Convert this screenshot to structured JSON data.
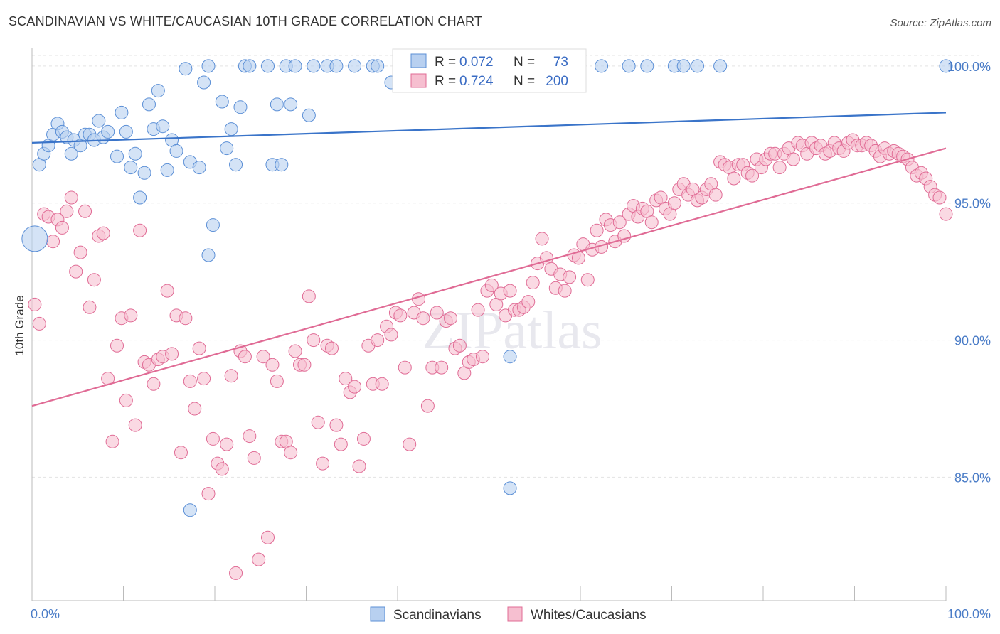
{
  "title": "SCANDINAVIAN VS WHITE/CAUCASIAN 10TH GRADE CORRELATION CHART",
  "source": "Source: ZipAtlas.com",
  "watermark": "ZIPatlas",
  "colors": {
    "blue": "#5b8fd6",
    "blue_fill": "#b8d0f0",
    "pink": "#e06b95",
    "pink_fill": "#f6bfd0",
    "tick": "#4a7cc7"
  },
  "chart_data": {
    "type": "scatter",
    "title": "SCANDINAVIAN VS WHITE/CAUCASIAN 10TH GRADE CORRELATION CHART",
    "xlabel": "",
    "ylabel": "10th Grade",
    "xlim": [
      0,
      100
    ],
    "ylim": [
      80.5,
      100.8
    ],
    "x_tick_labels": [
      "0.0%",
      "100.0%"
    ],
    "y_ticks": [
      85,
      90,
      95,
      100
    ],
    "y_tick_labels": [
      "85.0%",
      "90.0%",
      "95.0%",
      "100.0%"
    ],
    "grid": true,
    "legend": [
      {
        "r_label": "R =",
        "r": "0.072",
        "n_label": "N =",
        "n": "73"
      },
      {
        "r_label": "R =",
        "r": "0.724",
        "n_label": "N =",
        "n": "200"
      }
    ],
    "series": [
      {
        "name": "Scandinavians",
        "trend": {
          "x": [
            0,
            100
          ],
          "y": [
            97.2,
            98.3
          ]
        },
        "points": [
          [
            0.3,
            93.7
          ],
          [
            0.8,
            96.4
          ],
          [
            1.3,
            96.8
          ],
          [
            1.8,
            97.1
          ],
          [
            2.3,
            97.5
          ],
          [
            2.8,
            97.9
          ],
          [
            3.3,
            97.6
          ],
          [
            3.8,
            97.4
          ],
          [
            4.3,
            96.8
          ],
          [
            4.6,
            97.3
          ],
          [
            5.3,
            97.1
          ],
          [
            5.8,
            97.5
          ],
          [
            6.3,
            97.5
          ],
          [
            6.8,
            97.3
          ],
          [
            7.3,
            98.0
          ],
          [
            7.8,
            97.4
          ],
          [
            8.3,
            97.6
          ],
          [
            9.3,
            96.7
          ],
          [
            9.8,
            98.3
          ],
          [
            10.3,
            97.6
          ],
          [
            10.8,
            96.3
          ],
          [
            11.3,
            96.8
          ],
          [
            11.8,
            95.2
          ],
          [
            12.3,
            96.1
          ],
          [
            12.8,
            98.6
          ],
          [
            13.3,
            97.7
          ],
          [
            13.8,
            99.1
          ],
          [
            14.3,
            97.8
          ],
          [
            14.8,
            96.2
          ],
          [
            15.3,
            97.3
          ],
          [
            15.8,
            96.9
          ],
          [
            16.8,
            99.9
          ],
          [
            17.3,
            96.5
          ],
          [
            18.3,
            96.3
          ],
          [
            18.8,
            99.4
          ],
          [
            19.3,
            100.0
          ],
          [
            19.8,
            94.2
          ],
          [
            19.3,
            93.1
          ],
          [
            20.8,
            98.7
          ],
          [
            21.3,
            97.0
          ],
          [
            21.8,
            97.7
          ],
          [
            22.3,
            96.4
          ],
          [
            22.8,
            98.5
          ],
          [
            23.3,
            100.0
          ],
          [
            23.8,
            100.0
          ],
          [
            25.8,
            100.0
          ],
          [
            26.3,
            96.4
          ],
          [
            26.8,
            98.6
          ],
          [
            27.3,
            96.4
          ],
          [
            27.8,
            100.0
          ],
          [
            28.3,
            98.6
          ],
          [
            28.8,
            100.0
          ],
          [
            30.3,
            98.2
          ],
          [
            30.8,
            100.0
          ],
          [
            32.3,
            100.0
          ],
          [
            33.3,
            100.0
          ],
          [
            35.3,
            100.0
          ],
          [
            37.3,
            100.0
          ],
          [
            37.8,
            100.0
          ],
          [
            39.3,
            99.4
          ],
          [
            52.3,
            89.4
          ],
          [
            52.3,
            84.6
          ],
          [
            53.3,
            100.0
          ],
          [
            54.8,
            100.0
          ],
          [
            59.8,
            100.0
          ],
          [
            62.3,
            100.0
          ],
          [
            65.3,
            100.0
          ],
          [
            67.3,
            100.0
          ],
          [
            70.3,
            100.0
          ],
          [
            71.3,
            100.0
          ],
          [
            72.8,
            100.0
          ],
          [
            75.3,
            100.0
          ],
          [
            100,
            100.0
          ],
          [
            17.3,
            83.8
          ]
        ]
      },
      {
        "name": "Whites/Caucasians",
        "trend": {
          "x": [
            0,
            100
          ],
          "y": [
            87.6,
            97.0
          ]
        },
        "points": [
          [
            0.3,
            91.3
          ],
          [
            0.8,
            90.6
          ],
          [
            1.3,
            94.6
          ],
          [
            1.8,
            94.5
          ],
          [
            2.3,
            93.6
          ],
          [
            2.8,
            94.4
          ],
          [
            3.3,
            94.1
          ],
          [
            3.8,
            94.7
          ],
          [
            4.3,
            95.2
          ],
          [
            4.8,
            92.5
          ],
          [
            5.3,
            93.2
          ],
          [
            5.8,
            94.7
          ],
          [
            6.3,
            91.2
          ],
          [
            6.8,
            92.2
          ],
          [
            7.3,
            93.8
          ],
          [
            7.8,
            93.9
          ],
          [
            8.3,
            88.6
          ],
          [
            8.8,
            86.3
          ],
          [
            9.3,
            89.8
          ],
          [
            9.8,
            90.8
          ],
          [
            10.3,
            87.8
          ],
          [
            10.8,
            90.9
          ],
          [
            11.3,
            86.9
          ],
          [
            11.8,
            94.0
          ],
          [
            12.3,
            89.2
          ],
          [
            12.8,
            89.1
          ],
          [
            13.3,
            88.4
          ],
          [
            13.8,
            89.3
          ],
          [
            14.3,
            89.4
          ],
          [
            14.8,
            91.8
          ],
          [
            15.3,
            89.5
          ],
          [
            15.8,
            90.9
          ],
          [
            16.3,
            85.9
          ],
          [
            16.8,
            90.8
          ],
          [
            17.3,
            88.5
          ],
          [
            17.8,
            87.5
          ],
          [
            18.3,
            89.7
          ],
          [
            18.8,
            88.6
          ],
          [
            19.3,
            84.4
          ],
          [
            19.8,
            86.4
          ],
          [
            20.3,
            85.5
          ],
          [
            20.8,
            85.3
          ],
          [
            21.3,
            86.2
          ],
          [
            21.8,
            88.7
          ],
          [
            22.3,
            81.5
          ],
          [
            22.8,
            89.6
          ],
          [
            23.3,
            89.4
          ],
          [
            23.8,
            86.5
          ],
          [
            24.3,
            85.7
          ],
          [
            24.8,
            82.0
          ],
          [
            25.3,
            89.4
          ],
          [
            25.8,
            82.8
          ],
          [
            26.3,
            89.1
          ],
          [
            26.8,
            88.5
          ],
          [
            27.3,
            86.3
          ],
          [
            27.8,
            86.3
          ],
          [
            28.3,
            85.9
          ],
          [
            28.8,
            89.6
          ],
          [
            29.3,
            89.1
          ],
          [
            29.8,
            89.1
          ],
          [
            30.3,
            91.6
          ],
          [
            30.8,
            90.0
          ],
          [
            31.3,
            87.0
          ],
          [
            31.8,
            85.5
          ],
          [
            32.3,
            89.8
          ],
          [
            32.8,
            89.7
          ],
          [
            33.3,
            86.9
          ],
          [
            33.8,
            86.2
          ],
          [
            34.3,
            88.6
          ],
          [
            34.8,
            88.1
          ],
          [
            35.3,
            88.3
          ],
          [
            35.8,
            85.4
          ],
          [
            36.3,
            86.4
          ],
          [
            36.8,
            89.8
          ],
          [
            37.3,
            88.4
          ],
          [
            37.8,
            90.0
          ],
          [
            38.3,
            88.4
          ],
          [
            38.8,
            90.5
          ],
          [
            39.3,
            90.2
          ],
          [
            39.8,
            91.0
          ],
          [
            40.3,
            90.9
          ],
          [
            40.8,
            89.0
          ],
          [
            41.3,
            86.2
          ],
          [
            41.8,
            91.0
          ],
          [
            42.3,
            91.5
          ],
          [
            42.8,
            90.8
          ],
          [
            43.3,
            87.6
          ],
          [
            43.8,
            89.0
          ],
          [
            44.3,
            91.0
          ],
          [
            44.8,
            89.0
          ],
          [
            45.3,
            90.7
          ],
          [
            45.8,
            90.8
          ],
          [
            46.3,
            89.7
          ],
          [
            46.8,
            89.8
          ],
          [
            47.3,
            88.8
          ],
          [
            47.8,
            89.2
          ],
          [
            48.3,
            89.3
          ],
          [
            48.8,
            91.1
          ],
          [
            49.3,
            89.4
          ],
          [
            49.8,
            91.8
          ],
          [
            50.3,
            92.0
          ],
          [
            50.8,
            91.3
          ],
          [
            51.3,
            91.7
          ],
          [
            51.8,
            90.9
          ],
          [
            52.3,
            91.8
          ],
          [
            52.8,
            91.1
          ],
          [
            53.3,
            91.1
          ],
          [
            53.8,
            91.2
          ],
          [
            54.3,
            91.4
          ],
          [
            54.8,
            92.1
          ],
          [
            55.3,
            92.8
          ],
          [
            55.8,
            93.7
          ],
          [
            56.3,
            93.0
          ],
          [
            56.8,
            92.6
          ],
          [
            57.3,
            91.9
          ],
          [
            57.8,
            92.4
          ],
          [
            58.3,
            91.8
          ],
          [
            58.8,
            92.3
          ],
          [
            59.3,
            93.1
          ],
          [
            59.8,
            93.0
          ],
          [
            60.3,
            93.5
          ],
          [
            60.8,
            92.2
          ],
          [
            61.3,
            93.3
          ],
          [
            61.8,
            94.0
          ],
          [
            62.3,
            93.4
          ],
          [
            62.8,
            94.4
          ],
          [
            63.3,
            94.2
          ],
          [
            63.8,
            93.6
          ],
          [
            64.3,
            94.3
          ],
          [
            64.8,
            93.8
          ],
          [
            65.3,
            94.6
          ],
          [
            65.8,
            94.9
          ],
          [
            66.3,
            94.5
          ],
          [
            66.8,
            94.8
          ],
          [
            67.3,
            94.7
          ],
          [
            67.8,
            94.3
          ],
          [
            68.3,
            95.1
          ],
          [
            68.8,
            95.2
          ],
          [
            69.3,
            94.8
          ],
          [
            69.8,
            94.6
          ],
          [
            70.3,
            95.0
          ],
          [
            70.8,
            95.5
          ],
          [
            71.3,
            95.7
          ],
          [
            71.8,
            95.3
          ],
          [
            72.3,
            95.5
          ],
          [
            72.8,
            95.1
          ],
          [
            73.3,
            95.2
          ],
          [
            73.8,
            95.5
          ],
          [
            74.3,
            95.7
          ],
          [
            74.8,
            95.3
          ],
          [
            75.3,
            96.5
          ],
          [
            75.8,
            96.4
          ],
          [
            76.3,
            96.3
          ],
          [
            76.8,
            95.9
          ],
          [
            77.3,
            96.4
          ],
          [
            77.8,
            96.4
          ],
          [
            78.3,
            96.1
          ],
          [
            78.8,
            96.0
          ],
          [
            79.3,
            96.6
          ],
          [
            79.8,
            96.3
          ],
          [
            80.3,
            96.6
          ],
          [
            80.8,
            96.8
          ],
          [
            81.3,
            96.8
          ],
          [
            81.8,
            96.3
          ],
          [
            82.3,
            96.8
          ],
          [
            82.8,
            97.0
          ],
          [
            83.3,
            96.6
          ],
          [
            83.8,
            97.2
          ],
          [
            84.3,
            97.1
          ],
          [
            84.8,
            96.8
          ],
          [
            85.3,
            97.2
          ],
          [
            85.8,
            97.0
          ],
          [
            86.3,
            97.1
          ],
          [
            86.8,
            96.8
          ],
          [
            87.3,
            96.9
          ],
          [
            87.8,
            97.2
          ],
          [
            88.3,
            97.0
          ],
          [
            88.8,
            96.9
          ],
          [
            89.3,
            97.2
          ],
          [
            89.8,
            97.3
          ],
          [
            90.3,
            97.1
          ],
          [
            90.8,
            97.1
          ],
          [
            91.3,
            97.2
          ],
          [
            91.8,
            97.1
          ],
          [
            92.3,
            96.9
          ],
          [
            92.8,
            96.7
          ],
          [
            93.3,
            97.0
          ],
          [
            93.8,
            96.8
          ],
          [
            94.3,
            96.9
          ],
          [
            94.8,
            96.8
          ],
          [
            95.3,
            96.7
          ],
          [
            95.8,
            96.6
          ],
          [
            96.3,
            96.3
          ],
          [
            96.8,
            96.0
          ],
          [
            97.3,
            96.1
          ],
          [
            97.8,
            95.9
          ],
          [
            98.3,
            95.6
          ],
          [
            98.8,
            95.3
          ],
          [
            99.3,
            95.2
          ],
          [
            100,
            94.6
          ]
        ]
      }
    ]
  }
}
